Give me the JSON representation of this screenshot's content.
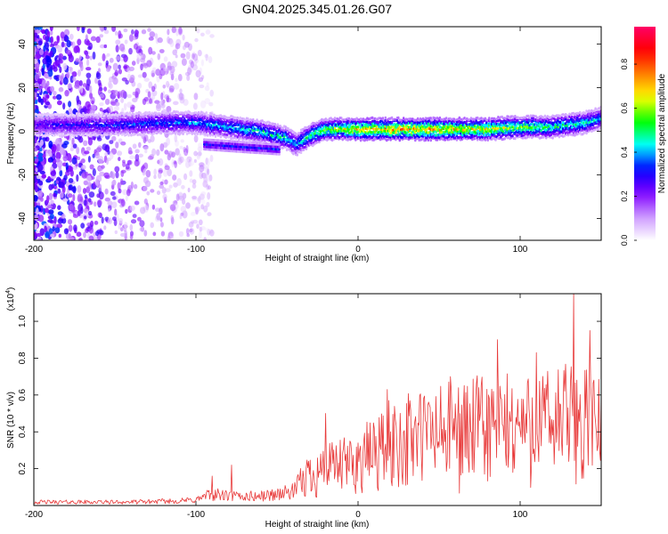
{
  "title": "GN04.2025.345.01.26.G07",
  "chart_data": [
    {
      "type": "heatmap",
      "name": "spectrogram",
      "xlabel": "Height of straight line (km)",
      "ylabel": "Frequency (Hz)",
      "xlim": [
        -200,
        150
      ],
      "ylim": [
        -50,
        48
      ],
      "x_ticks": [
        -200,
        -100,
        0,
        100
      ],
      "x_tick_labels": [
        "-200",
        "-100",
        "0",
        "100"
      ],
      "y_ticks": [
        -40,
        -20,
        0,
        20,
        40
      ],
      "y_tick_labels": [
        "-40",
        "-20",
        "0",
        "20",
        "40"
      ],
      "colorbar": {
        "label": "Normalized spectral amplitude",
        "range": [
          0,
          0.97
        ],
        "ticks": [
          0.0,
          0.2,
          0.4,
          0.6,
          0.8
        ],
        "tick_labels": [
          "0.0",
          "0.2",
          "0.4",
          "0.6",
          "0.8"
        ],
        "colormap": [
          "#ffffff",
          "#cc99ff",
          "#8000ff",
          "#0000ff",
          "#00ffff",
          "#00ff00",
          "#ffff00",
          "#ff8000",
          "#ff0000",
          "#ff0066"
        ]
      },
      "ridge": {
        "x": [
          -200,
          -150,
          -120,
          -100,
          -80,
          -60,
          -45,
          -38,
          -30,
          -20,
          0,
          20,
          50,
          80,
          100,
          120,
          140,
          150
        ],
        "freq": [
          3,
          3,
          4,
          4,
          2,
          0,
          -3,
          -6,
          -2,
          1,
          1,
          1,
          1,
          1,
          2,
          2,
          4,
          6
        ],
        "amplitude": [
          0.3,
          0.35,
          0.4,
          0.42,
          0.45,
          0.5,
          0.5,
          0.45,
          0.55,
          0.6,
          0.75,
          0.8,
          0.75,
          0.7,
          0.6,
          0.55,
          0.5,
          0.45
        ]
      }
    },
    {
      "type": "line",
      "name": "snr",
      "xlabel": "Height of straight line (km)",
      "ylabel": "SNR (10 * v/v)",
      "y_scale_label": "(x10",
      "y_scale_exponent": "4",
      "color": "#e83a3a",
      "xlim": [
        -200,
        150
      ],
      "ylim": [
        0,
        1.15
      ],
      "x_ticks": [
        -200,
        -100,
        0,
        100
      ],
      "x_tick_labels": [
        "-200",
        "-100",
        "0",
        "100"
      ],
      "y_ticks": [
        0.2,
        0.4,
        0.6,
        0.8,
        1.0
      ],
      "y_tick_labels": [
        "0.2",
        "0.4",
        "0.6",
        "0.8",
        "1.0"
      ],
      "envelope_x": [
        -200,
        -140,
        -110,
        -100,
        -90,
        -80,
        -60,
        -40,
        -30,
        -20,
        0,
        10,
        20,
        40,
        60,
        80,
        100,
        120,
        130,
        140,
        150
      ],
      "envelope_y": [
        0.03,
        0.03,
        0.04,
        0.05,
        0.1,
        0.08,
        0.08,
        0.12,
        0.3,
        0.33,
        0.4,
        0.5,
        0.58,
        0.65,
        0.68,
        0.72,
        0.72,
        0.75,
        0.8,
        0.75,
        0.7
      ],
      "peaks": [
        {
          "x": -90,
          "y": 0.16
        },
        {
          "x": -78,
          "y": 0.22
        },
        {
          "x": -20,
          "y": 0.5
        },
        {
          "x": 18,
          "y": 0.63
        },
        {
          "x": 57,
          "y": 0.7
        },
        {
          "x": 86,
          "y": 0.9
        },
        {
          "x": 110,
          "y": 0.83
        },
        {
          "x": 133,
          "y": 1.15
        },
        {
          "x": 143,
          "y": 0.95
        }
      ]
    }
  ]
}
